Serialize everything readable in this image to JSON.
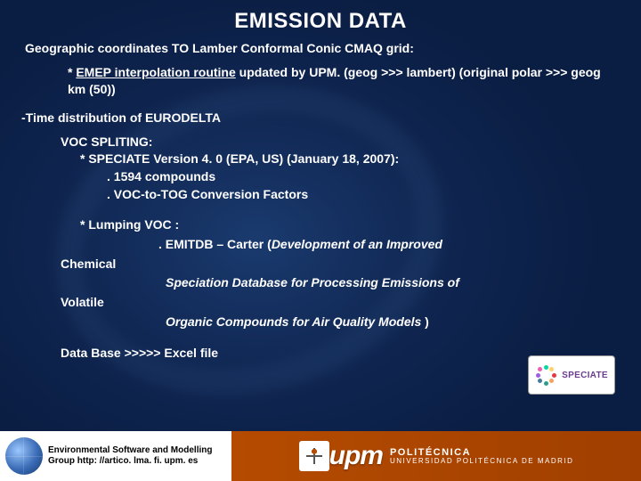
{
  "title": "EMISSION DATA",
  "geo_line": "Geographic coordinates TO Lamber Conformal Conic CMAQ grid:",
  "emep": {
    "prefix": "* ",
    "underlined": "EMEP interpolation routine",
    "suffix": " updated by UPM. (geog >>> lambert) (original polar >>> geog km (50))"
  },
  "time_dist": "-Time distribution of EURODELTA",
  "voc": {
    "heading": "VOC SPLITING:",
    "speciate_line": "* SPECIATE Version 4. 0 (EPA, US) (January 18, 2007):",
    "compounds": ". 1594 compounds",
    "conversion": ". VOC-to-TOG Conversion Factors"
  },
  "lumping": {
    "l1": "* Lumping VOC  :",
    "l2_a": ". EMITDB – Carter (",
    "l2_b_italic": "Development of an Improved",
    "l3": "Chemical",
    "l4_italic": "Speciation Database for Processing Emissions of",
    "l5": "Volatile",
    "l6_a_italic": "Organic Compounds for Air Quality Models",
    "l6_b": " )"
  },
  "db_line": "Data Base >>>>>  Excel file",
  "speciate_label": "SPECIATE",
  "footer": {
    "group_line1": "Environmental Software and Modelling",
    "group_line2": "Group http: //artico. lma. fi. upm. es",
    "upm_mark": "upm",
    "upm_sub1": "POLITÉCNICA",
    "upm_sub2": "UNIVERSIDAD POLITÉCNICA DE MADRID"
  },
  "colors": {
    "bg": "#0f2550",
    "footer_right": "#b54b00",
    "speciate_text": "#6a3d8f",
    "dot_colors": [
      "#e63946",
      "#f4a261",
      "#2a9d8f",
      "#457b9d",
      "#9b5de5",
      "#f15bb5",
      "#06d6a0",
      "#ffd166"
    ]
  }
}
